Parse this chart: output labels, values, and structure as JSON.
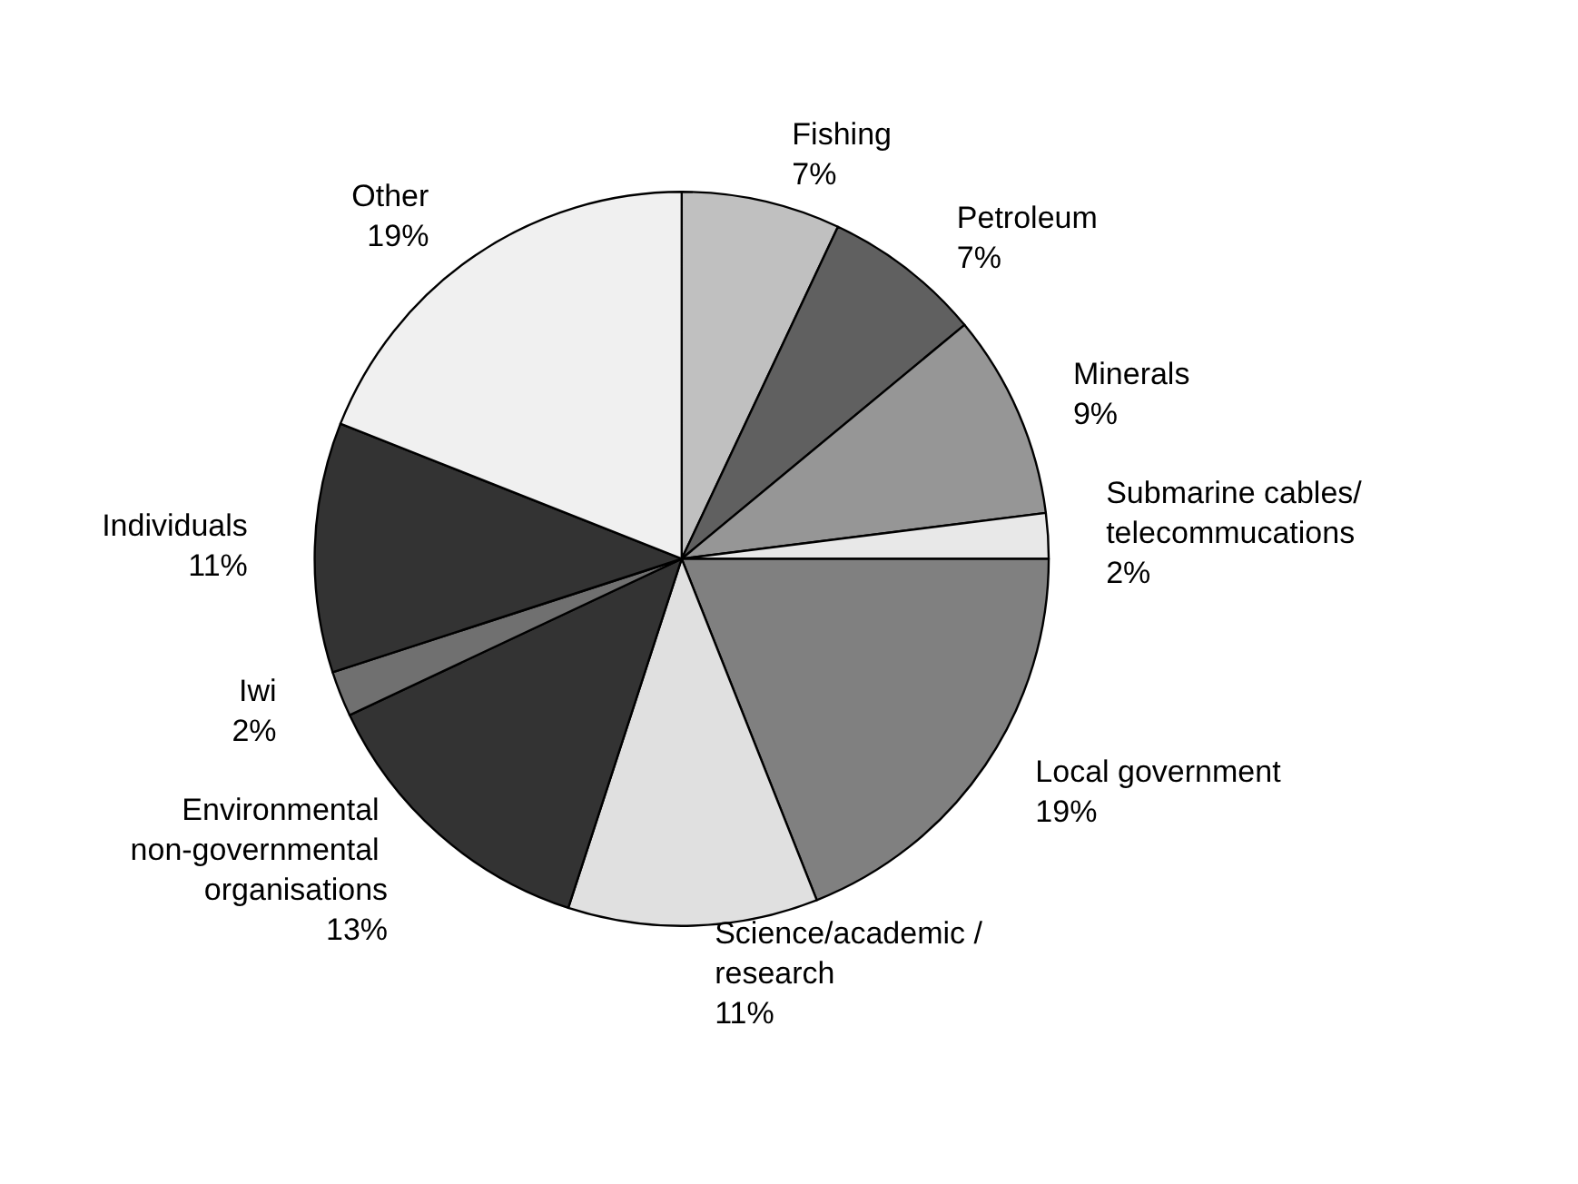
{
  "chart_data": {
    "type": "pie",
    "categories": [
      "Fishing",
      "Petroleum",
      "Minerals",
      "Submarine cables/ telecommucations",
      "Local government",
      "Science/academic /research",
      "Environmental non-governmental organisations",
      "Iwi",
      "Individuals",
      "Other"
    ],
    "values": [
      7,
      7,
      9,
      2,
      19,
      11,
      13,
      2,
      11,
      19
    ],
    "value_labels": [
      "7%",
      "7%",
      "9%",
      "2%",
      "19%",
      "11%",
      "13%",
      "2%",
      "11%",
      "19%"
    ],
    "colors": [
      "#c0c0c0",
      "#606060",
      "#969696",
      "#e8e8e8",
      "#808080",
      "#e0e0e0",
      "#333333",
      "#707070",
      "#333333",
      "#f0f0f0"
    ],
    "legend": false
  }
}
